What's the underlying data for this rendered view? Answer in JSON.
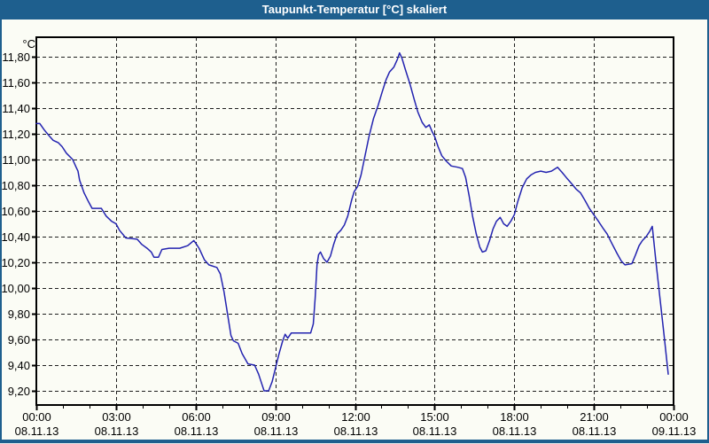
{
  "window": {
    "title": "Taupunkt-Temperatur [°C] skaliert"
  },
  "colors": {
    "titlebar_bg": "#1E5F8E",
    "frame": "#1E5F8E",
    "page_bg": "#FBFCF5",
    "title_text": "#FFFFFF",
    "grid": "#1F1F1F",
    "axis": "#000000",
    "line": "#2323B0",
    "label_text": "#000000"
  },
  "chart_data": {
    "type": "line",
    "title": "Taupunkt-Temperatur [°C] skaliert",
    "unit_label": "°C",
    "grid": "dashed",
    "y_axis": {
      "min": 9.2,
      "max": 11.8,
      "step": 0.2,
      "labels": [
        "9,20",
        "9,40",
        "9,60",
        "9,80",
        "10,00",
        "10,20",
        "10,40",
        "10,60",
        "10,80",
        "11,00",
        "11,20",
        "11,40",
        "11,60",
        "11,80"
      ]
    },
    "x_axis": {
      "range_hours": [
        0,
        24
      ],
      "minor_tick_every_hours": 1,
      "major_ticks": [
        {
          "h": 0,
          "time": "00:00",
          "date": "08.11.13"
        },
        {
          "h": 3,
          "time": "03:00",
          "date": "08.11.13"
        },
        {
          "h": 6,
          "time": "06:00",
          "date": "08.11.13"
        },
        {
          "h": 9,
          "time": "09:00",
          "date": "08.11.13"
        },
        {
          "h": 12,
          "time": "12:00",
          "date": "08.11.13"
        },
        {
          "h": 15,
          "time": "15:00",
          "date": "08.11.13"
        },
        {
          "h": 18,
          "time": "18:00",
          "date": "08.11.13"
        },
        {
          "h": 21,
          "time": "21:00",
          "date": "08.11.13"
        },
        {
          "h": 24,
          "time": "00:00",
          "date": "09.11.13"
        }
      ]
    },
    "series": [
      {
        "name": "Taupunkt-Temperatur",
        "color": "#2323B0",
        "points": [
          [
            0.0,
            11.28
          ],
          [
            0.13,
            11.28
          ],
          [
            0.3,
            11.23
          ],
          [
            0.5,
            11.18
          ],
          [
            0.63,
            11.15
          ],
          [
            0.83,
            11.13
          ],
          [
            0.97,
            11.1
          ],
          [
            1.13,
            11.05
          ],
          [
            1.37,
            11.0
          ],
          [
            1.5,
            10.94
          ],
          [
            1.57,
            10.91
          ],
          [
            1.63,
            10.84
          ],
          [
            1.8,
            10.74
          ],
          [
            1.97,
            10.67
          ],
          [
            2.1,
            10.62
          ],
          [
            2.45,
            10.62
          ],
          [
            2.63,
            10.56
          ],
          [
            2.83,
            10.52
          ],
          [
            3.0,
            10.5
          ],
          [
            3.13,
            10.45
          ],
          [
            3.37,
            10.39
          ],
          [
            3.8,
            10.38
          ],
          [
            3.97,
            10.34
          ],
          [
            4.17,
            10.31
          ],
          [
            4.33,
            10.28
          ],
          [
            4.43,
            10.24
          ],
          [
            4.6,
            10.24
          ],
          [
            4.73,
            10.3
          ],
          [
            5.0,
            10.31
          ],
          [
            5.4,
            10.31
          ],
          [
            5.7,
            10.33
          ],
          [
            5.93,
            10.37
          ],
          [
            6.0,
            10.35
          ],
          [
            6.13,
            10.31
          ],
          [
            6.33,
            10.22
          ],
          [
            6.5,
            10.18
          ],
          [
            6.8,
            10.16
          ],
          [
            6.93,
            10.11
          ],
          [
            7.07,
            9.97
          ],
          [
            7.2,
            9.8
          ],
          [
            7.33,
            9.63
          ],
          [
            7.42,
            9.59
          ],
          [
            7.6,
            9.57
          ],
          [
            7.75,
            9.49
          ],
          [
            7.97,
            9.41
          ],
          [
            8.22,
            9.4
          ],
          [
            8.37,
            9.33
          ],
          [
            8.5,
            9.25
          ],
          [
            8.58,
            9.2
          ],
          [
            8.75,
            9.2
          ],
          [
            8.88,
            9.27
          ],
          [
            9.0,
            9.37
          ],
          [
            9.13,
            9.48
          ],
          [
            9.28,
            9.59
          ],
          [
            9.37,
            9.64
          ],
          [
            9.47,
            9.61
          ],
          [
            9.6,
            9.65
          ],
          [
            10.0,
            9.65
          ],
          [
            10.33,
            9.65
          ],
          [
            10.43,
            9.72
          ],
          [
            10.5,
            9.92
          ],
          [
            10.57,
            10.18
          ],
          [
            10.63,
            10.26
          ],
          [
            10.7,
            10.28
          ],
          [
            10.82,
            10.23
          ],
          [
            10.95,
            10.2
          ],
          [
            11.08,
            10.25
          ],
          [
            11.2,
            10.34
          ],
          [
            11.33,
            10.42
          ],
          [
            11.47,
            10.45
          ],
          [
            11.6,
            10.49
          ],
          [
            11.73,
            10.56
          ],
          [
            11.87,
            10.68
          ],
          [
            11.97,
            10.75
          ],
          [
            12.1,
            10.79
          ],
          [
            12.23,
            10.88
          ],
          [
            12.37,
            11.02
          ],
          [
            12.53,
            11.18
          ],
          [
            12.7,
            11.32
          ],
          [
            12.87,
            11.42
          ],
          [
            13.03,
            11.53
          ],
          [
            13.17,
            11.62
          ],
          [
            13.3,
            11.68
          ],
          [
            13.47,
            11.72
          ],
          [
            13.6,
            11.78
          ],
          [
            13.68,
            11.83
          ],
          [
            13.77,
            11.79
          ],
          [
            13.9,
            11.7
          ],
          [
            14.07,
            11.59
          ],
          [
            14.23,
            11.47
          ],
          [
            14.37,
            11.37
          ],
          [
            14.53,
            11.29
          ],
          [
            14.67,
            11.25
          ],
          [
            14.8,
            11.27
          ],
          [
            14.9,
            11.22
          ],
          [
            15.0,
            11.18
          ],
          [
            15.13,
            11.1
          ],
          [
            15.27,
            11.03
          ],
          [
            15.43,
            10.99
          ],
          [
            15.63,
            10.95
          ],
          [
            15.87,
            10.94
          ],
          [
            16.05,
            10.93
          ],
          [
            16.17,
            10.86
          ],
          [
            16.3,
            10.72
          ],
          [
            16.43,
            10.56
          ],
          [
            16.57,
            10.42
          ],
          [
            16.7,
            10.32
          ],
          [
            16.8,
            10.28
          ],
          [
            16.93,
            10.29
          ],
          [
            17.07,
            10.37
          ],
          [
            17.2,
            10.46
          ],
          [
            17.33,
            10.52
          ],
          [
            17.47,
            10.55
          ],
          [
            17.6,
            10.5
          ],
          [
            17.73,
            10.48
          ],
          [
            17.87,
            10.52
          ],
          [
            18.0,
            10.57
          ],
          [
            18.13,
            10.67
          ],
          [
            18.3,
            10.78
          ],
          [
            18.47,
            10.85
          ],
          [
            18.63,
            10.88
          ],
          [
            18.8,
            10.9
          ],
          [
            19.0,
            10.91
          ],
          [
            19.2,
            10.9
          ],
          [
            19.4,
            10.91
          ],
          [
            19.63,
            10.94
          ],
          [
            19.8,
            10.9
          ],
          [
            20.0,
            10.85
          ],
          [
            20.17,
            10.81
          ],
          [
            20.33,
            10.77
          ],
          [
            20.5,
            10.74
          ],
          [
            20.67,
            10.68
          ],
          [
            20.83,
            10.62
          ],
          [
            21.0,
            10.57
          ],
          [
            21.17,
            10.52
          ],
          [
            21.33,
            10.47
          ],
          [
            21.5,
            10.42
          ],
          [
            21.67,
            10.35
          ],
          [
            21.87,
            10.27
          ],
          [
            22.03,
            10.21
          ],
          [
            22.17,
            10.18
          ],
          [
            22.43,
            10.19
          ],
          [
            22.57,
            10.26
          ],
          [
            22.7,
            10.33
          ],
          [
            22.83,
            10.37
          ],
          [
            22.97,
            10.4
          ],
          [
            23.1,
            10.44
          ],
          [
            23.2,
            10.48
          ],
          [
            23.33,
            10.22
          ],
          [
            23.5,
            9.9
          ],
          [
            23.65,
            9.62
          ],
          [
            23.8,
            9.33
          ]
        ]
      }
    ]
  }
}
